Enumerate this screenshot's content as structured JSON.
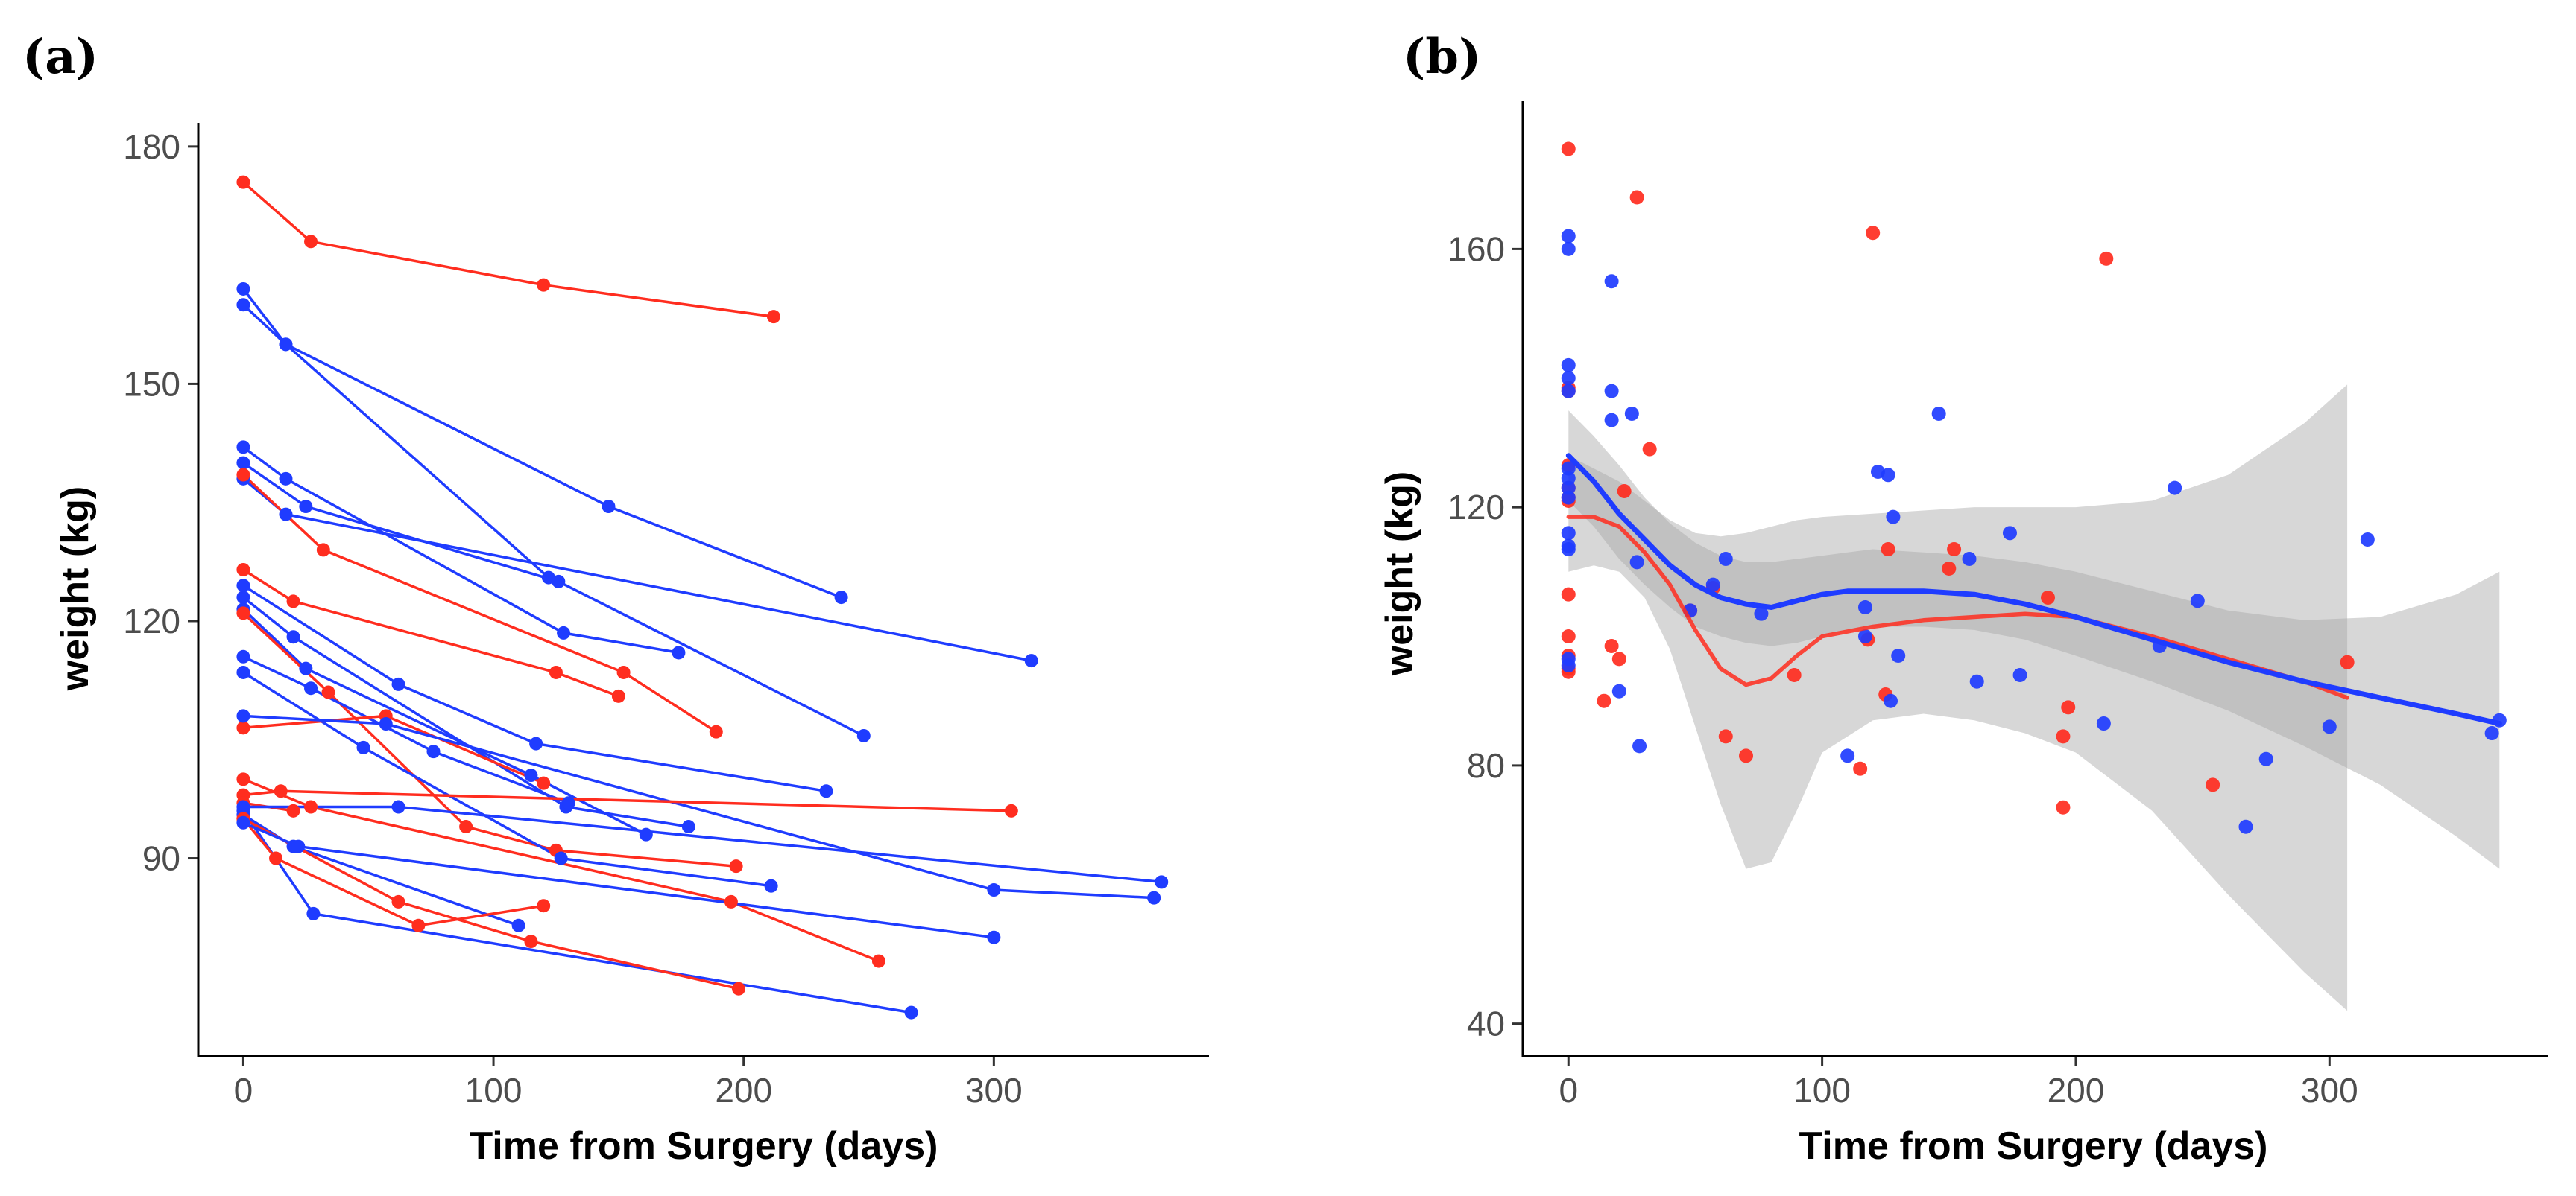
{
  "colors": {
    "red": "#ff2d1f",
    "blue": "#1f3cff",
    "band": "#a6a6a6"
  },
  "chart_data": [
    {
      "type": "line",
      "panel_label": "(a)",
      "title": "",
      "xlabel": "Time from Surgery (days)",
      "ylabel": "weight (kg)",
      "xlim": [
        -18,
        386
      ],
      "ylim": [
        65,
        183
      ],
      "xticks": [
        0,
        100,
        200,
        300
      ],
      "yticks": [
        90,
        120,
        150,
        180
      ],
      "grid": false,
      "series": [
        {
          "color": "red",
          "x": [
            0,
            27,
            120,
            212
          ],
          "y": [
            175.5,
            168,
            162.5,
            158.5
          ]
        },
        {
          "color": "blue",
          "x": [
            0,
            17,
            122
          ],
          "y": [
            162,
            155,
            125.5
          ]
        },
        {
          "color": "blue",
          "x": [
            0,
            17,
            146,
            239
          ],
          "y": [
            160,
            155,
            134.5,
            123
          ]
        },
        {
          "color": "blue",
          "x": [
            0,
            17,
            128,
            174
          ],
          "y": [
            142,
            138,
            118.5,
            116
          ]
        },
        {
          "color": "blue",
          "x": [
            0,
            25,
            126,
            248
          ],
          "y": [
            140,
            134.5,
            125,
            105.5
          ]
        },
        {
          "color": "blue",
          "x": [
            0,
            17,
            315
          ],
          "y": [
            138,
            133.5,
            115
          ]
        },
        {
          "color": "red",
          "x": [
            0,
            32,
            152,
            189
          ],
          "y": [
            138.5,
            129,
            113.5,
            106
          ]
        },
        {
          "color": "red",
          "x": [
            0,
            20,
            125,
            150
          ],
          "y": [
            126.5,
            122.5,
            113.5,
            110.5
          ]
        },
        {
          "color": "blue",
          "x": [
            0,
            62,
            117,
            233
          ],
          "y": [
            124.5,
            112,
            104.5,
            98.5
          ]
        },
        {
          "color": "blue",
          "x": [
            0,
            20,
            129,
            178
          ],
          "y": [
            123,
            118,
            96.5,
            94
          ]
        },
        {
          "color": "blue",
          "x": [
            0,
            25,
            115,
            161
          ],
          "y": [
            121.5,
            114,
            100.5,
            93
          ]
        },
        {
          "color": "red",
          "x": [
            0,
            34,
            89,
            125,
            197
          ],
          "y": [
            121,
            111,
            94,
            91,
            89
          ]
        },
        {
          "color": "blue",
          "x": [
            0,
            27,
            76,
            130
          ],
          "y": [
            115.5,
            111.5,
            103.5,
            97
          ]
        },
        {
          "color": "blue",
          "x": [
            0,
            48,
            127,
            211
          ],
          "y": [
            113.5,
            104,
            90,
            86.5
          ]
        },
        {
          "color": "red",
          "x": [
            0,
            57,
            120
          ],
          "y": [
            106.5,
            108,
            99.5
          ]
        },
        {
          "color": "blue",
          "x": [
            0,
            57,
            300,
            364
          ],
          "y": [
            108,
            107,
            86,
            85
          ]
        },
        {
          "color": "red",
          "x": [
            0,
            27,
            195,
            254
          ],
          "y": [
            100,
            96.5,
            84.5,
            77
          ]
        },
        {
          "color": "red",
          "x": [
            0,
            15,
            307
          ],
          "y": [
            98,
            98.5,
            96
          ]
        },
        {
          "color": "red",
          "x": [
            0,
            20
          ],
          "y": [
            97,
            96
          ]
        },
        {
          "color": "blue",
          "x": [
            0,
            62,
            367
          ],
          "y": [
            96.5,
            96.5,
            87
          ]
        },
        {
          "color": "blue",
          "x": [
            0,
            20,
            110
          ],
          "y": [
            95.5,
            91.5,
            81.5
          ]
        },
        {
          "color": "blue",
          "x": [
            0,
            28,
            267
          ],
          "y": [
            96,
            83,
            70.5
          ]
        },
        {
          "color": "red",
          "x": [
            0,
            13,
            70,
            120
          ],
          "y": [
            95,
            90,
            81.5,
            84
          ]
        },
        {
          "color": "red",
          "x": [
            0,
            62,
            115,
            198
          ],
          "y": [
            95,
            84.5,
            79.5,
            73.5
          ]
        },
        {
          "color": "blue",
          "x": [
            0,
            22,
            300
          ],
          "y": [
            94.5,
            91.5,
            80
          ]
        }
      ]
    },
    {
      "type": "scatter",
      "panel_label": "(b)",
      "title": "",
      "xlabel": "Time from Surgery (days)",
      "ylabel": "weight (kg)",
      "xlim": [
        -18,
        386
      ],
      "ylim": [
        35,
        183
      ],
      "xticks": [
        0,
        100,
        200,
        300
      ],
      "yticks": [
        40,
        80,
        120,
        160
      ],
      "grid": false,
      "points": {
        "red": {
          "x": [
            0,
            0,
            0,
            0,
            0,
            0,
            0,
            0,
            0,
            0,
            14,
            17,
            20,
            22,
            27,
            32,
            48,
            57,
            62,
            70,
            89,
            115,
            118,
            120,
            125,
            126,
            150,
            152,
            189,
            195,
            195,
            197,
            212,
            254,
            307,
            0,
            0
          ],
          "y": [
            175.5,
            138.5,
            138,
            126.5,
            121,
            106.5,
            100,
            97,
            95,
            94.5,
            90,
            98.5,
            96.5,
            122.5,
            168,
            129,
            104,
            107.5,
            84.5,
            81.5,
            94,
            79.5,
            99.5,
            162.5,
            91,
            113.5,
            110.5,
            113.5,
            106,
            84.5,
            73.5,
            89,
            158.5,
            77,
            96,
            121.5,
            123
          ]
        },
        "blue": {
          "x": [
            0,
            0,
            0,
            0,
            0,
            0,
            0,
            0,
            0,
            0,
            0,
            0,
            0,
            0,
            17,
            17,
            17,
            20,
            25,
            27,
            28,
            48,
            57,
            62,
            76,
            110,
            117,
            117,
            122,
            126,
            127,
            128,
            130,
            146,
            158,
            161,
            174,
            178,
            211,
            233,
            239,
            248,
            267,
            275,
            300,
            315,
            364,
            367
          ],
          "y": [
            162,
            160,
            142,
            140,
            138,
            126,
            124.5,
            123,
            121.5,
            116,
            114,
            113.5,
            96.5,
            95.5,
            155,
            138,
            133.5,
            91.5,
            134.5,
            111.5,
            83,
            104,
            108,
            112,
            103.5,
            81.5,
            100,
            104.5,
            125.5,
            125,
            90,
            118.5,
            97,
            134.5,
            112,
            93,
            116,
            94,
            86.5,
            98.5,
            123,
            105.5,
            70.5,
            81,
            86,
            115,
            85,
            87
          ]
        }
      },
      "smooth_lines": [
        {
          "color": "red",
          "x": [
            0,
            10,
            20,
            30,
            40,
            50,
            60,
            70,
            80,
            90,
            100,
            120,
            140,
            160,
            180,
            200,
            230,
            260,
            290,
            307
          ],
          "y": [
            118.5,
            118.5,
            117,
            113,
            108,
            101,
            95,
            92.5,
            93.5,
            97,
            100,
            101.5,
            102.5,
            103,
            103.5,
            103,
            100,
            96.5,
            93,
            90.5
          ],
          "band_upper": [
            128,
            126,
            124,
            121,
            118,
            116,
            115.5,
            116,
            117,
            118,
            118.5,
            119,
            119.5,
            120,
            120,
            120,
            121,
            125,
            133,
            139
          ],
          "band_lower": [
            110,
            111,
            110,
            106,
            98,
            86,
            74,
            64,
            65,
            73,
            82,
            87,
            88,
            87,
            85,
            82,
            73,
            60,
            48,
            42
          ]
        },
        {
          "color": "blue",
          "x": [
            0,
            10,
            20,
            30,
            40,
            50,
            60,
            70,
            80,
            90,
            100,
            110,
            120,
            140,
            160,
            180,
            200,
            230,
            260,
            290,
            320,
            350,
            367
          ],
          "y": [
            128,
            124,
            119,
            115,
            111,
            108,
            106,
            105,
            104.5,
            105.5,
            106.5,
            107,
            107,
            107,
            106.5,
            105,
            103,
            99.5,
            96,
            93,
            90.5,
            88,
            86.5
          ],
          "band_upper": [
            135,
            131,
            126.5,
            121.5,
            117.5,
            114.5,
            112.5,
            111.5,
            111.5,
            112,
            112.5,
            113,
            113.5,
            113,
            112.5,
            111.5,
            110,
            107,
            104,
            102.5,
            103,
            106.5,
            110
          ],
          "band_lower": [
            121,
            117,
            112,
            108,
            104.5,
            101.5,
            100,
            99,
            98.5,
            99,
            100,
            101,
            101.5,
            101.5,
            101,
            99.5,
            97,
            93,
            88.5,
            83,
            77,
            69,
            64
          ]
        }
      ]
    }
  ]
}
